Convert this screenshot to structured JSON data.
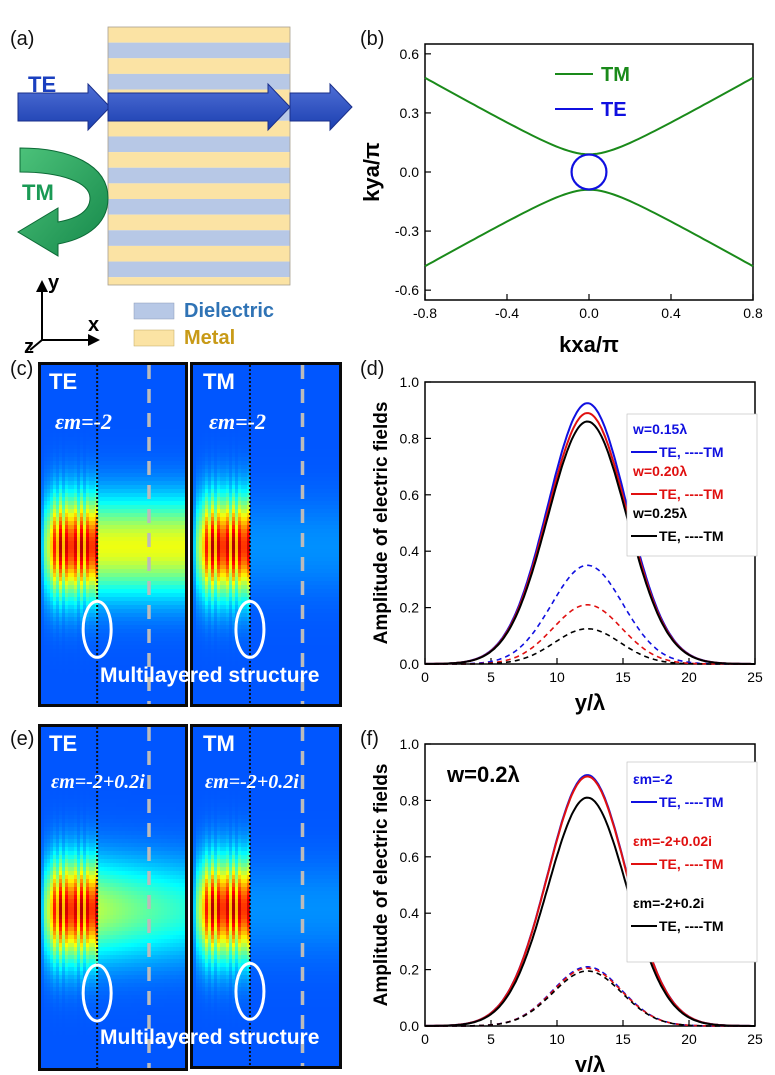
{
  "panel_labels": {
    "a": "(a)",
    "b": "(b)",
    "c": "(c)",
    "d": "(d)",
    "e": "(e)",
    "f": "(f)"
  },
  "panel_a": {
    "te_label": "TE",
    "tm_label": "TM",
    "axis_y": "y",
    "axis_x": "x",
    "axis_z": "z",
    "legend": [
      {
        "label": "Dielectric",
        "color": "#b7c8e6",
        "text_color": "#2f73b5"
      },
      {
        "label": "Metal",
        "color": "#fbe3a4",
        "text_color": "#c89a17"
      }
    ],
    "layer_count": 16
  },
  "panel_c": {
    "te": {
      "title": "TE",
      "eps": "εm=-2"
    },
    "tm": {
      "title": "TM",
      "eps": "εm=-2"
    },
    "overlay": "Multilayered structure"
  },
  "panel_e": {
    "te": {
      "title": "TE",
      "eps": "εm=-2+0.2i"
    },
    "tm": {
      "title": "TM",
      "eps": "εm=-2+0.2i"
    },
    "overlay": "Multilayered structure"
  },
  "chart_data": [
    {
      "panel": "b",
      "type": "line",
      "xlabel": "kxa/π",
      "ylabel": "kya/π",
      "xlim": [
        -0.8,
        0.8
      ],
      "ylim": [
        -0.65,
        0.65
      ],
      "xticks": [
        "-0.8",
        "-0.4",
        "0.0",
        "0.4",
        "0.8"
      ],
      "yticks": [
        "0.6",
        "0.3",
        "0.0",
        "-0.3",
        "-0.6"
      ],
      "series": [
        {
          "name": "TM",
          "color": "#1a8a1a",
          "x": [
            -0.8,
            -0.6,
            -0.4,
            -0.2,
            0.0,
            0.2,
            0.4,
            0.6,
            0.8
          ],
          "y_upper": [
            0.48,
            0.31,
            0.19,
            0.115,
            0.09,
            0.115,
            0.19,
            0.31,
            0.48
          ],
          "y_lower": [
            -0.48,
            -0.31,
            -0.19,
            -0.115,
            -0.09,
            -0.115,
            -0.19,
            -0.31,
            -0.48
          ]
        },
        {
          "name": "TE",
          "color": "#1010e0",
          "circle_center": [
            0.0,
            0.0
          ],
          "circle_radius": 0.085
        }
      ]
    },
    {
      "panel": "d",
      "type": "line",
      "xlabel": "y/λ",
      "ylabel": "Amplitude of electric fields",
      "xlim": [
        0,
        25
      ],
      "ylim": [
        0,
        1.0
      ],
      "xticks": [
        "0",
        "5",
        "10",
        "15",
        "20",
        "25"
      ],
      "yticks": [
        "0.0",
        "0.2",
        "0.4",
        "0.6",
        "0.8",
        "1.0"
      ],
      "center": 12.3,
      "legend": [
        {
          "head": "w=0.15λ",
          "entry": "TE, ----TM",
          "color": "#1010e0"
        },
        {
          "head": "w=0.20λ",
          "entry": "TE, ----TM",
          "color": "#e01010"
        },
        {
          "head": "w=0.25λ",
          "entry": "TE, ----TM",
          "color": "#000000"
        }
      ],
      "series": [
        {
          "color": "#1010e0",
          "te_peak": 0.925,
          "te_sigma": 3.0,
          "tm_peak": 0.35,
          "tm_sigma": 2.7
        },
        {
          "color": "#e01010",
          "te_peak": 0.89,
          "te_sigma": 3.0,
          "tm_peak": 0.21,
          "tm_sigma": 2.6
        },
        {
          "color": "#000000",
          "te_peak": 0.86,
          "te_sigma": 3.0,
          "tm_peak": 0.125,
          "tm_sigma": 2.5
        }
      ]
    },
    {
      "panel": "f",
      "type": "line",
      "xlabel": "y/λ",
      "ylabel": "Amplitude of electric fields",
      "annotation": "w=0.2λ",
      "xlim": [
        0,
        25
      ],
      "ylim": [
        0,
        1.0
      ],
      "xticks": [
        "0",
        "5",
        "10",
        "15",
        "20",
        "25"
      ],
      "yticks": [
        "0.0",
        "0.2",
        "0.4",
        "0.6",
        "0.8",
        "1.0"
      ],
      "center": 12.3,
      "legend": [
        {
          "head": "εm=-2",
          "entry": "TE, ----TM",
          "color": "#1010e0"
        },
        {
          "head": "εm=-2+0.02i",
          "entry": "TE, ----TM",
          "color": "#e01010"
        },
        {
          "head": "εm=-2+0.2i",
          "entry": "TE, ----TM",
          "color": "#000000"
        }
      ],
      "series": [
        {
          "color": "#1010e0",
          "te_peak": 0.89,
          "te_sigma": 3.0,
          "tm_peak": 0.21,
          "tm_sigma": 2.6
        },
        {
          "color": "#e01010",
          "te_peak": 0.885,
          "te_sigma": 3.0,
          "tm_peak": 0.205,
          "tm_sigma": 2.6
        },
        {
          "color": "#000000",
          "te_peak": 0.81,
          "te_sigma": 3.0,
          "tm_peak": 0.195,
          "tm_sigma": 2.6
        }
      ]
    }
  ]
}
